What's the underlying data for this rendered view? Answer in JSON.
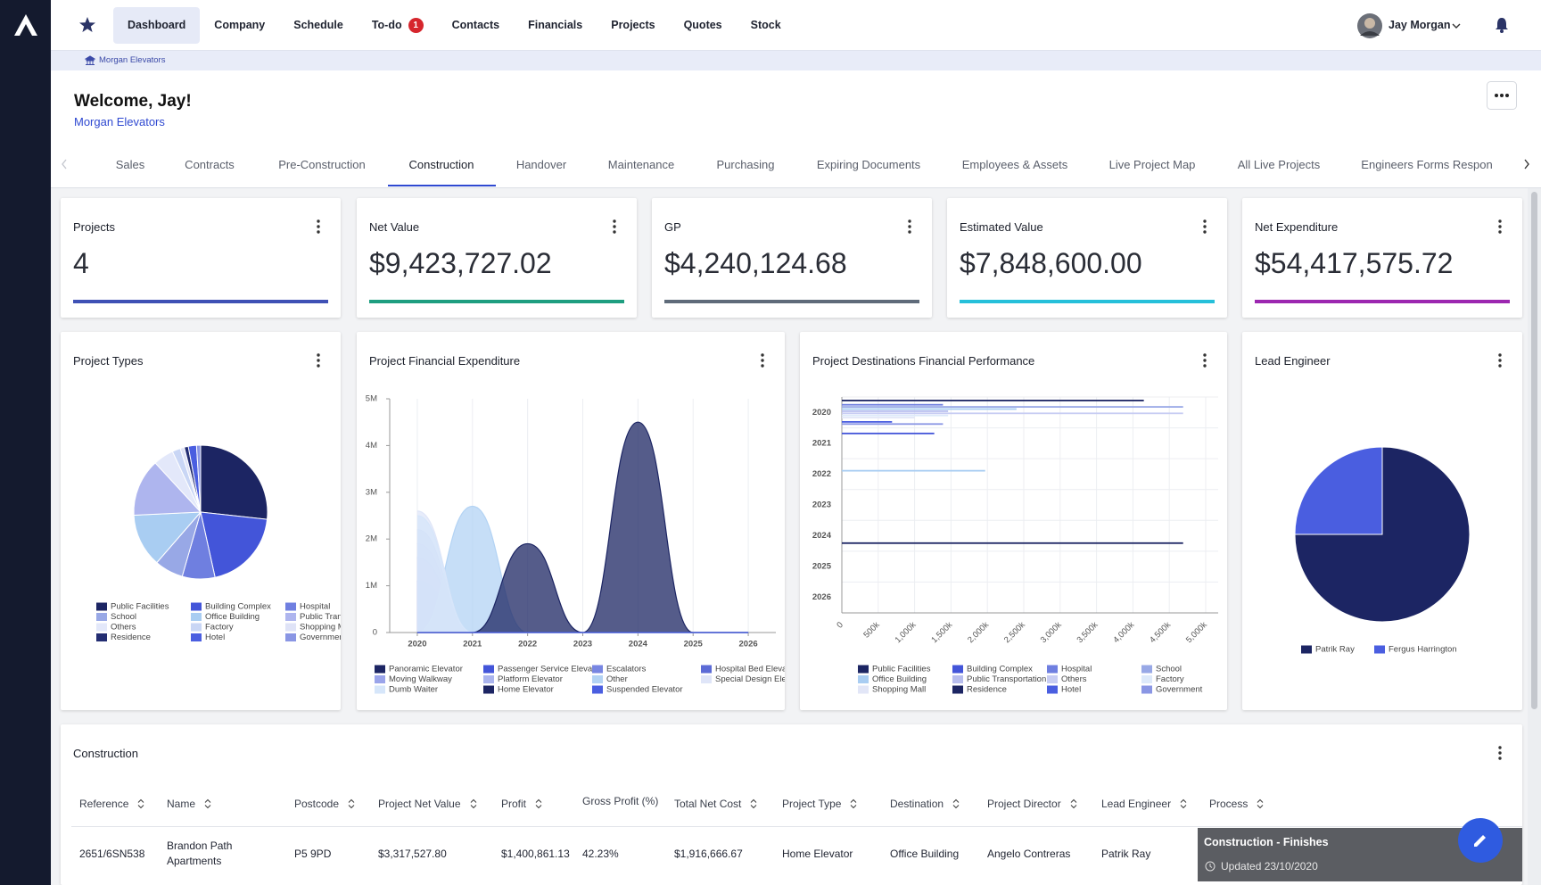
{
  "app": {
    "nav": [
      "Dashboard",
      "Company",
      "Schedule",
      "To-do",
      "Contacts",
      "Financials",
      "Projects",
      "Quotes",
      "Stock"
    ],
    "todo_badge": "1",
    "user": "Jay Morgan"
  },
  "breadcrumb": "Morgan Elevators",
  "welcome": {
    "title": "Welcome, Jay!",
    "company": "Morgan Elevators"
  },
  "tabs": [
    "Sales",
    "Contracts",
    "Pre-Construction",
    "Construction",
    "Handover",
    "Maintenance",
    "Purchasing",
    "Expiring Documents",
    "Employees & Assets",
    "Live Project Map",
    "All Live Projects",
    "Engineers Forms Respon"
  ],
  "kpis": [
    {
      "title": "Projects",
      "value": "4",
      "color": "#3f51b5"
    },
    {
      "title": "Net Value",
      "value": "$9,423,727.02",
      "color": "#1e9e80"
    },
    {
      "title": "GP",
      "value": "$4,240,124.68",
      "color": "#5f6b7a"
    },
    {
      "title": "Estimated Value",
      "value": "$7,848,600.00",
      "color": "#26c0da"
    },
    {
      "title": "Net Expenditure",
      "value": "$54,417,575.72",
      "color": "#9c27b0"
    }
  ],
  "chart_data": [
    {
      "type": "pie",
      "title": "Project Types",
      "categories": [
        "Public Facilities",
        "Building Complex",
        "Hospital",
        "School",
        "Office Building",
        "Public Transportation",
        "Others",
        "Factory",
        "Shopping Mall",
        "Residence",
        "Hotel",
        "Government"
      ],
      "values": [
        27,
        20,
        8,
        7,
        13,
        14,
        5,
        2,
        1,
        1,
        2,
        1
      ],
      "colors": [
        "#1c2563",
        "#4355d9",
        "#6f7fe0",
        "#98a8e6",
        "#a9cdf2",
        "#aeb5ee",
        "#e3e8fa",
        "#c9d6f5",
        "#dfe3f7",
        "#232d72",
        "#4a5ee0",
        "#8a96e4"
      ]
    },
    {
      "type": "area",
      "title": "Project Financial Expenditure",
      "categories": [
        "2020",
        "2021",
        "2022",
        "2023",
        "2024",
        "2025",
        "2026"
      ],
      "ylim": [
        0,
        5000000
      ],
      "yticks": [
        0,
        {
          "value": 1000000,
          "label": "1M"
        },
        {
          "value": 2000000,
          "label": "2M"
        },
        {
          "value": 3000000,
          "label": "3M"
        },
        {
          "value": 4000000,
          "label": "4M"
        },
        {
          "value": 5000000,
          "label": "5M"
        }
      ],
      "series": [
        {
          "name": "Panoramic Elevator",
          "color": "#1c2563",
          "values": [
            0,
            0,
            0,
            0,
            0,
            0,
            0
          ]
        },
        {
          "name": "Passenger Service Elevator",
          "color": "#4355d9",
          "values": [
            1100000,
            0,
            0,
            0,
            0,
            0,
            0
          ]
        },
        {
          "name": "Escalators",
          "color": "#7886e2",
          "values": [
            1600000,
            0,
            0,
            0,
            0,
            0,
            0
          ]
        },
        {
          "name": "Hospital Bed Elevator",
          "color": "#5c6bd6",
          "values": [
            0,
            0,
            0,
            0,
            0,
            0,
            0
          ]
        },
        {
          "name": "Moving Walkway",
          "color": "#9aa4ea",
          "values": [
            1900000,
            0,
            0,
            0,
            0,
            0,
            0
          ]
        },
        {
          "name": "Platform Elevator",
          "color": "#aab4ee",
          "values": [
            2200000,
            0,
            0,
            0,
            0,
            0,
            0
          ]
        },
        {
          "name": "Other",
          "color": "#b3d3f4",
          "values": [
            0,
            2700000,
            0,
            0,
            0,
            0,
            0
          ]
        },
        {
          "name": "Special Design Elevator",
          "color": "#dfe5f8",
          "values": [
            2600000,
            0,
            0,
            0,
            0,
            0,
            0
          ]
        },
        {
          "name": "Dumb Waiter",
          "color": "#d6e6fa",
          "values": [
            2500000,
            0,
            0,
            0,
            0,
            0,
            0
          ]
        },
        {
          "name": "Home Elevator",
          "color": "#1c2563",
          "values": [
            0,
            0,
            1900000,
            0,
            4500000,
            0,
            0
          ]
        },
        {
          "name": "Suspended Elevator",
          "color": "#4a5ee0",
          "values": [
            0,
            0,
            0,
            0,
            0,
            0,
            0
          ]
        }
      ]
    },
    {
      "type": "hbar",
      "title": "Project Destinations Financial Performance",
      "categories": [
        "2020",
        "2021",
        "2022",
        "2023",
        "2024",
        "2025",
        "2026"
      ],
      "xlim": [
        0,
        5000000
      ],
      "xticks": [
        0,
        {
          "value": 500000,
          "label": "500k"
        },
        {
          "value": 1000000,
          "label": "1,000k"
        },
        {
          "value": 1500000,
          "label": "1,500k"
        },
        {
          "value": 2000000,
          "label": "2,000k"
        },
        {
          "value": 2500000,
          "label": "2,500k"
        },
        {
          "value": 3000000,
          "label": "3,000k"
        },
        {
          "value": 3500000,
          "label": "3,500k"
        },
        {
          "value": 4000000,
          "label": "4,000k"
        },
        {
          "value": 4500000,
          "label": "4,500k"
        },
        {
          "value": 5000000,
          "label": "5,000k"
        }
      ],
      "series": [
        {
          "name": "Public Facilities",
          "color": "#1c2563",
          "values": [
            4150000,
            null,
            null,
            null,
            null,
            null,
            null
          ]
        },
        {
          "name": "Building Complex",
          "color": "#4355d9",
          "values": [
            null,
            1270000,
            null,
            null,
            null,
            null,
            null
          ]
        },
        {
          "name": "Hospital",
          "color": "#6f7fe0",
          "values": [
            1390000,
            null,
            null,
            null,
            null,
            null,
            null
          ]
        },
        {
          "name": "School",
          "color": "#98a8e6",
          "values": [
            4690000,
            null,
            null,
            null,
            null,
            null,
            null
          ]
        },
        {
          "name": "Office Building",
          "color": "#a9cdf2",
          "values": [
            2400000,
            null,
            1970000,
            null,
            null,
            null,
            null
          ]
        },
        {
          "name": "Public Transportation",
          "color": "#b7bdee",
          "values": [
            1460000,
            null,
            null,
            null,
            null,
            null,
            null
          ]
        },
        {
          "name": "Others",
          "color": "#c8cdf3",
          "values": [
            4690000,
            null,
            null,
            null,
            null,
            null,
            null
          ]
        },
        {
          "name": "Factory",
          "color": "#dde9fa",
          "values": [
            1460000,
            null,
            null,
            null,
            null,
            null,
            null
          ]
        },
        {
          "name": "Shopping Mall",
          "color": "#e2e6f7",
          "values": [
            1000000,
            null,
            null,
            null,
            null,
            null,
            null
          ]
        },
        {
          "name": "Residence",
          "color": "#1c2563",
          "values": [
            null,
            null,
            null,
            null,
            4690000,
            null,
            null
          ]
        },
        {
          "name": "Hotel",
          "color": "#4a5ee0",
          "values": [
            690000,
            null,
            null,
            null,
            null,
            null,
            null
          ]
        },
        {
          "name": "Government",
          "color": "#8a96e4",
          "values": [
            1390000,
            null,
            null,
            null,
            null,
            null,
            null
          ]
        }
      ]
    },
    {
      "type": "pie",
      "title": "Lead Engineer",
      "categories": [
        "Patrik Ray",
        "Fergus Harrington"
      ],
      "values": [
        75,
        25
      ],
      "colors": [
        "#1c2563",
        "#4a5ee0"
      ]
    }
  ],
  "table": {
    "title": "Construction",
    "columns": [
      "Reference",
      "Name",
      "Postcode",
      "Project Net Value",
      "Profit",
      "Gross Profit (%)",
      "Total Net Cost",
      "Project Type",
      "Destination",
      "Project Director",
      "Lead Engineer",
      "Process"
    ],
    "rows": [
      [
        "2651/6SN538",
        "Brandon Path Apartments",
        "P5 9PD",
        "$3,317,527.80",
        "$1,400,861.13",
        "42.23%",
        "$1,916,666.67",
        "Home Elevator",
        "Office Building",
        "Angelo Contreras",
        "Patrik Ray",
        {
          "title": "Construction - Finishes",
          "updated": "Updated 23/10/2020"
        }
      ]
    ]
  }
}
